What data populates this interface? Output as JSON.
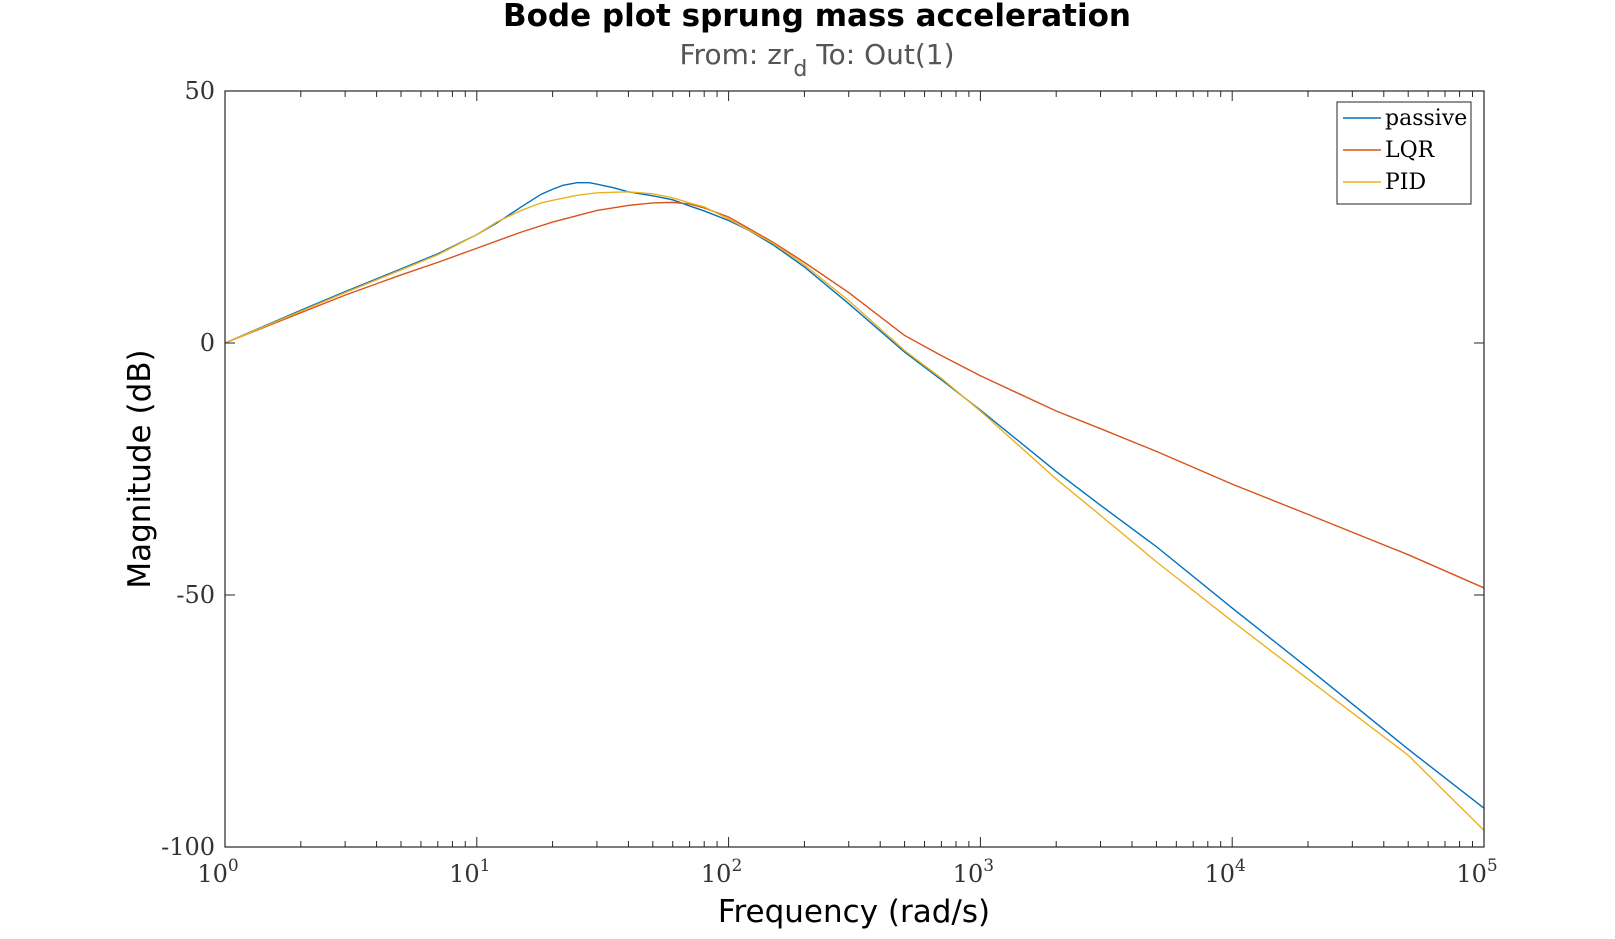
{
  "chart_data": {
    "type": "line",
    "title": "Bode plot sprung mass acceleration",
    "subtitle": {
      "prefix": "From: zr",
      "subscript": "d",
      "suffix": "  To: Out(1)"
    },
    "xlabel": "Frequency  (rad/s)",
    "ylabel": "Magnitude (dB)",
    "xscale": "log",
    "xlim": [
      1,
      100000
    ],
    "ylim": [
      -100,
      50
    ],
    "xticks": [
      {
        "base": "10",
        "exp": "0",
        "value": 1
      },
      {
        "base": "10",
        "exp": "1",
        "value": 10
      },
      {
        "base": "10",
        "exp": "2",
        "value": 100
      },
      {
        "base": "10",
        "exp": "3",
        "value": 1000
      },
      {
        "base": "10",
        "exp": "4",
        "value": 10000
      },
      {
        "base": "10",
        "exp": "5",
        "value": 100000
      }
    ],
    "yticks": [
      {
        "label": "50",
        "value": 50
      },
      {
        "label": "0",
        "value": 0
      },
      {
        "label": "-50",
        "value": -50
      },
      {
        "label": "-100",
        "value": -100
      }
    ],
    "grid": false,
    "legend_position": "top-right",
    "series": [
      {
        "name": "passive",
        "color": "#0072BD",
        "x": [
          1,
          2,
          3,
          5,
          7,
          10,
          12,
          15,
          18,
          20,
          22,
          25,
          28,
          30,
          35,
          40,
          50,
          60,
          70,
          80,
          100,
          120,
          150,
          200,
          300,
          500,
          700,
          1000,
          2000,
          3000,
          5000,
          10000,
          20000,
          50000,
          100000
        ],
        "y": [
          0,
          6.5,
          10.2,
          14.7,
          17.7,
          21.5,
          23.8,
          27,
          29.5,
          30.5,
          31.3,
          31.8,
          31.8,
          31.5,
          30.8,
          30,
          29.2,
          28.4,
          27.2,
          26.2,
          24.3,
          22.4,
          19.5,
          15.1,
          7.8,
          -1.8,
          -7.3,
          -13.3,
          -25.5,
          -32.2,
          -40.4,
          -52.6,
          -64.5,
          -80.6,
          -92.3
        ]
      },
      {
        "name": "LQR",
        "color": "#D95319",
        "x": [
          1,
          2,
          3,
          5,
          7,
          10,
          15,
          20,
          30,
          40,
          50,
          60,
          70,
          80,
          100,
          150,
          200,
          300,
          500,
          700,
          1000,
          2000,
          3000,
          5000,
          10000,
          20000,
          50000,
          100000
        ],
        "y": [
          0,
          6,
          9.5,
          13.5,
          16,
          18.8,
          22,
          24,
          26.3,
          27.3,
          27.8,
          27.9,
          27.6,
          26.8,
          25,
          20,
          16,
          10,
          1.5,
          -2.5,
          -6.5,
          -13.5,
          -17,
          -21.5,
          -28,
          -34,
          -42,
          -48.6
        ]
      },
      {
        "name": "PID",
        "color": "#EDB120",
        "x": [
          1,
          2,
          3,
          5,
          7,
          10,
          12,
          15,
          18,
          20,
          25,
          30,
          40,
          50,
          60,
          70,
          80,
          100,
          150,
          200,
          300,
          500,
          700,
          1000,
          2000,
          3000,
          5000,
          10000,
          20000,
          50000,
          100000
        ],
        "y": [
          0,
          6.3,
          10,
          14.5,
          17.5,
          21.5,
          24,
          26.3,
          27.8,
          28.3,
          29.3,
          29.8,
          30,
          29.6,
          28.8,
          27.8,
          27,
          24.6,
          19.8,
          15.5,
          8.4,
          -1.5,
          -7,
          -13.5,
          -27,
          -34.2,
          -43.4,
          -55.2,
          -66.7,
          -81.8,
          -96.7
        ]
      }
    ]
  }
}
